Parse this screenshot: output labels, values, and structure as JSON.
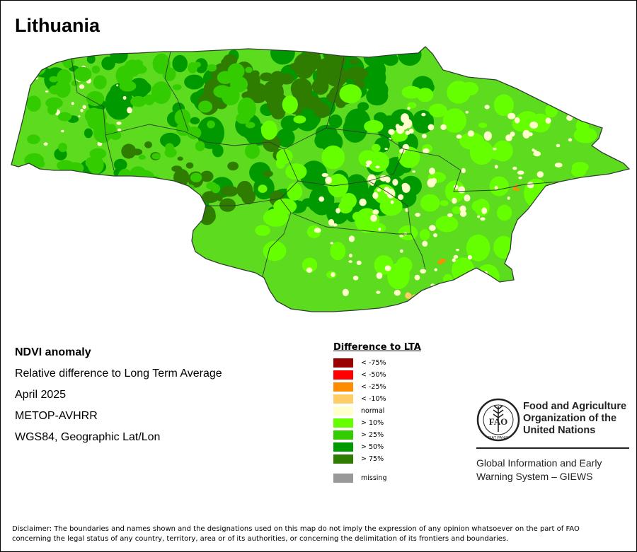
{
  "map": {
    "title": "Lithuania",
    "colors": {
      "boundary": "#2f3f2f",
      "base": "#5ddc1f"
    }
  },
  "info": {
    "product": "NDVI anomaly",
    "description": "Relative difference to Long Term Average",
    "period": "April 2025",
    "sensor": "METOP-AVHRR",
    "projection": "WGS84, Geographic Lat/Lon"
  },
  "legend": {
    "title": "Difference to LTA",
    "items": [
      {
        "label": "< -75%",
        "color": "#990000"
      },
      {
        "label": "< -50%",
        "color": "#ff0000"
      },
      {
        "label": "< -25%",
        "color": "#ff8c00"
      },
      {
        "label": "< -10%",
        "color": "#ffcc66"
      },
      {
        "label": "normal",
        "color": "#ffffcc"
      },
      {
        "label": "> 10%",
        "color": "#66ff00"
      },
      {
        "label": "> 25%",
        "color": "#33cc00"
      },
      {
        "label": "> 50%",
        "color": "#009900"
      },
      {
        "label": "> 75%",
        "color": "#2e7d00"
      }
    ],
    "missing": {
      "label": "missing",
      "color": "#999999"
    }
  },
  "logo": {
    "icon": "fao-emblem-icon",
    "org_lines": [
      "Food and Agriculture",
      "Organization of the",
      "United Nations"
    ],
    "emblem_letters": "FAO",
    "emblem_motto": "FIAT PANIS",
    "program_lines": [
      "Global Information and Early",
      "Warning System – GIEWS"
    ]
  },
  "disclaimer": {
    "lines": [
      "Disclaimer: The boundaries and names shown and the designations used on this map do not imply the expression of any opinion whatsoever on the part of FAO",
      "concerning the legal status of any country, territory, area or of its authorities, or concerning the delimitation of its frontiers and boundaries."
    ]
  }
}
